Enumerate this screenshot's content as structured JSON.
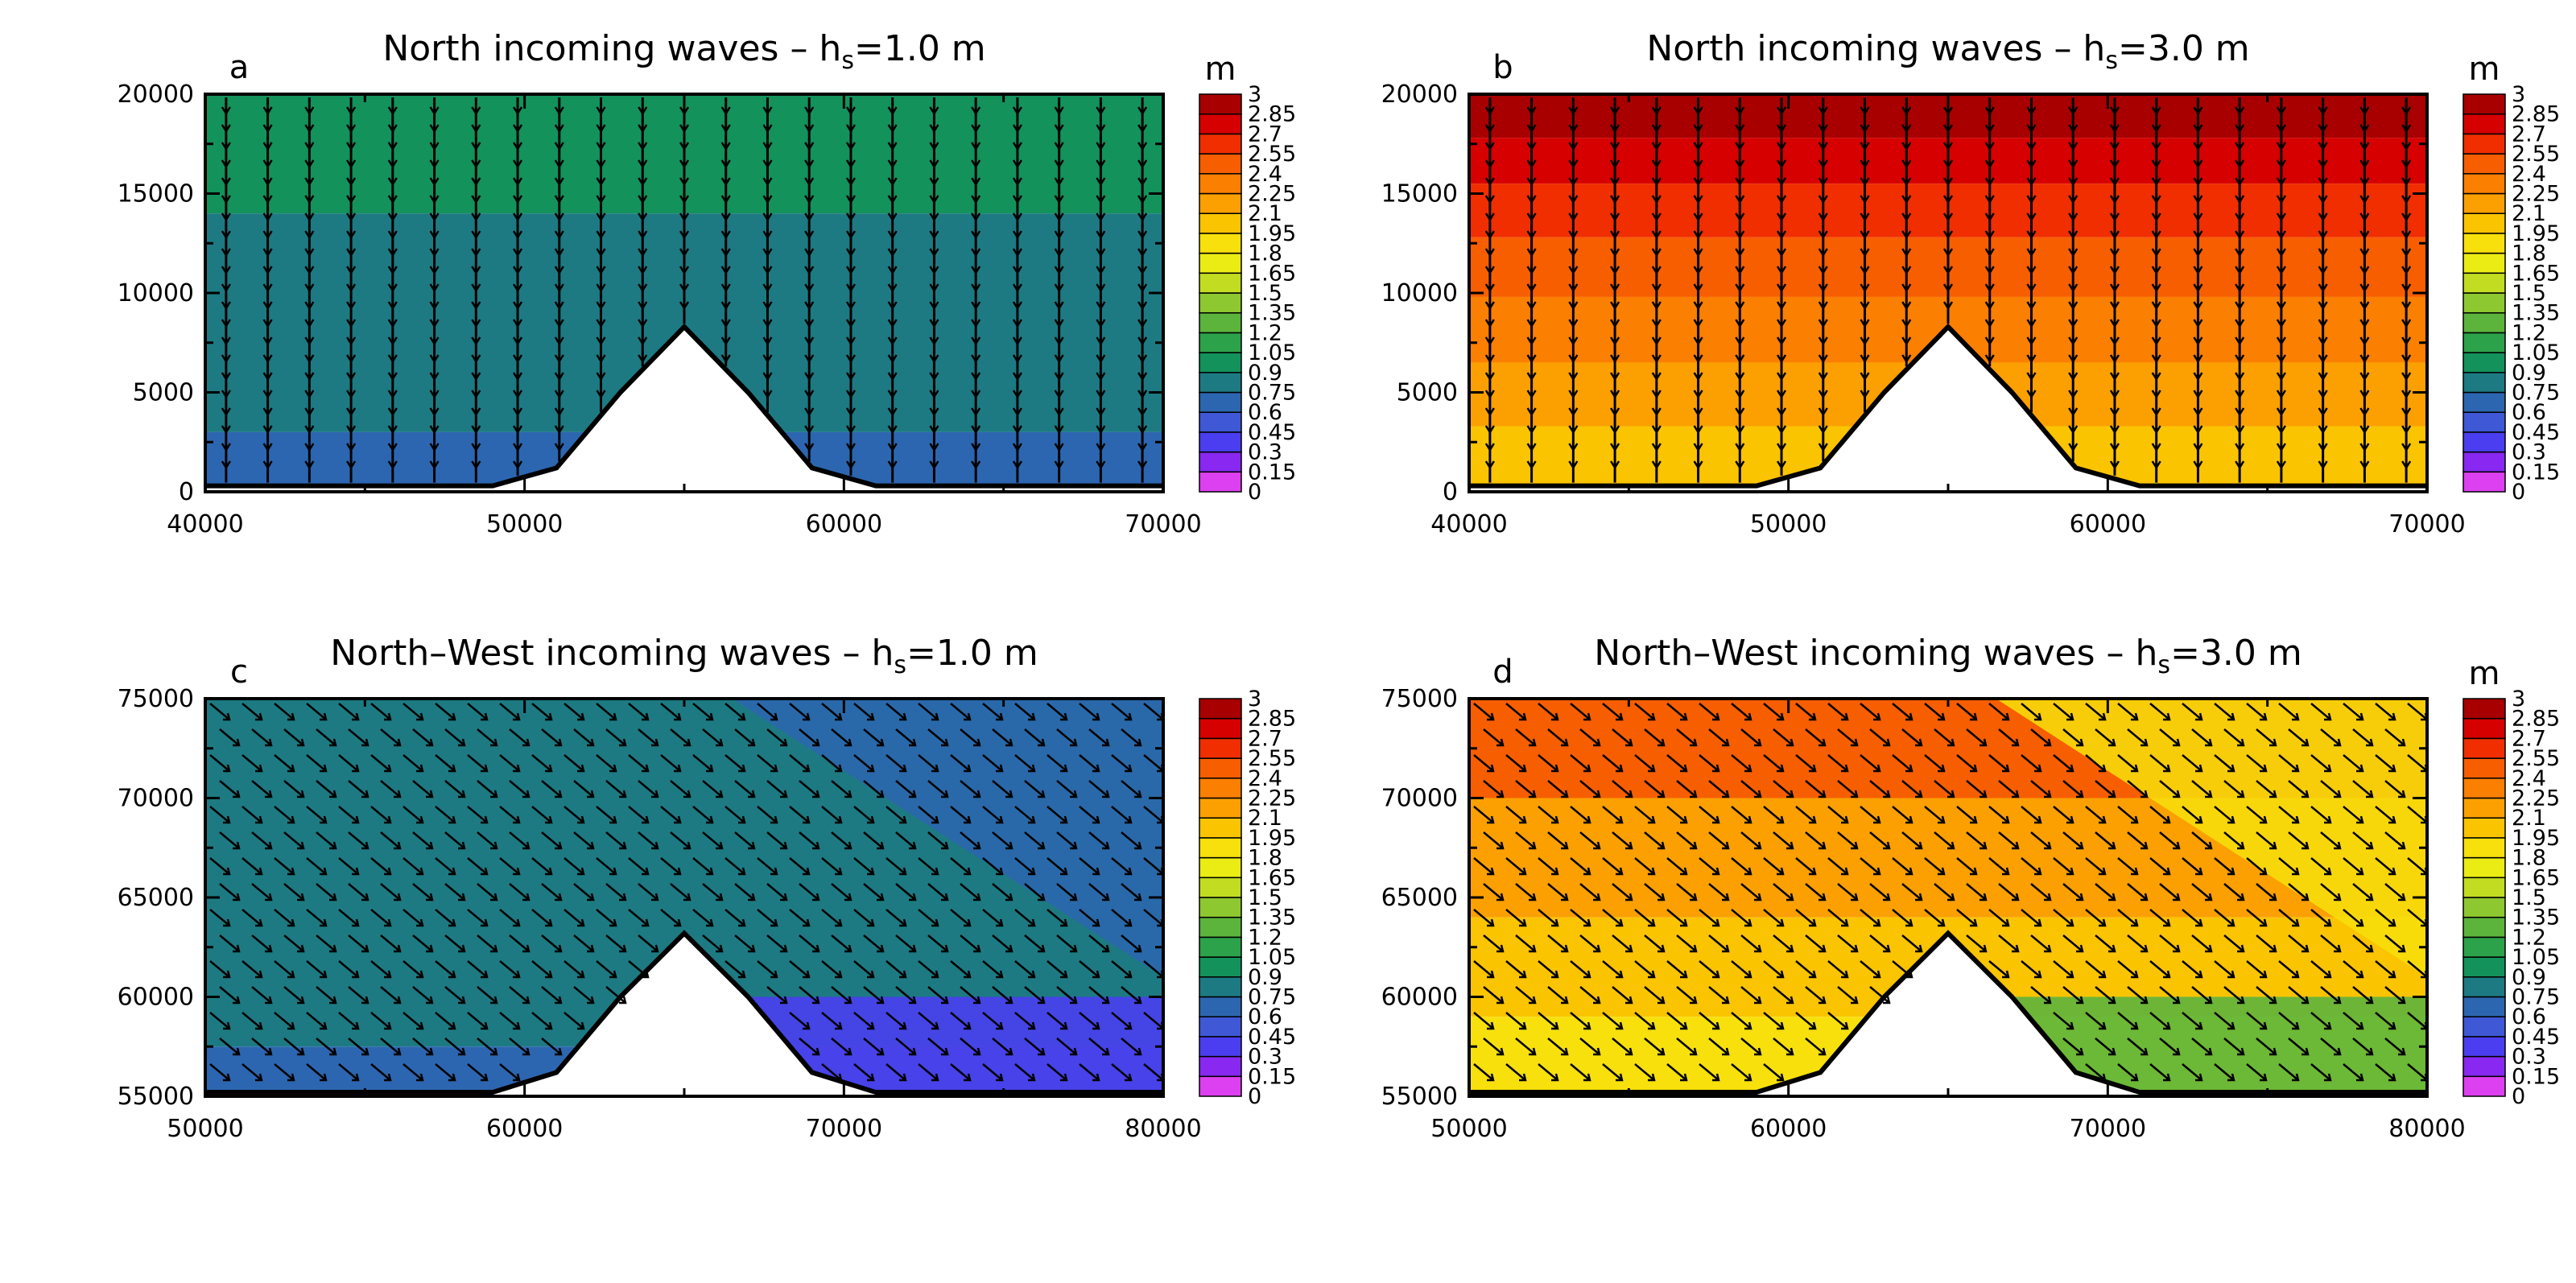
{
  "colorbar": {
    "unit": "m",
    "levels": [
      "0",
      "0.15",
      "0.3",
      "0.45",
      "0.6",
      "0.75",
      "0.9",
      "1.05",
      "1.2",
      "1.35",
      "1.5",
      "1.65",
      "1.8",
      "1.95",
      "2.1",
      "2.25",
      "2.4",
      "2.55",
      "2.7",
      "2.85",
      "3"
    ],
    "colors": [
      "#dd40f0",
      "#8828f0",
      "#4a3ef0",
      "#3e58d6",
      "#2c66b0",
      "#1d7a82",
      "#13925c",
      "#2ca24a",
      "#5cb43c",
      "#8ec830",
      "#c2dc22",
      "#eaec14",
      "#f7e00c",
      "#fbc400",
      "#fba000",
      "#fb7f00",
      "#f75e00",
      "#f02e00",
      "#d60000",
      "#a80000"
    ]
  },
  "chart_data": [
    {
      "type": "heatmap",
      "panel": "a",
      "title": "North incoming waves – h",
      "title_sub": "s",
      "title_tail": "=1.0 m",
      "xlim": [
        40000,
        70000
      ],
      "ylim": [
        0,
        20000
      ],
      "xticks": [
        "40000",
        "50000",
        "60000",
        "70000"
      ],
      "yticks": [
        "0",
        "5000",
        "10000",
        "15000",
        "20000"
      ],
      "xtick_values": [
        40000,
        50000,
        60000,
        70000
      ],
      "ytick_values": [
        0,
        5000,
        10000,
        15000,
        20000
      ],
      "island": {
        "x": [
          40000,
          49000,
          51000,
          53000,
          55000,
          57000,
          59000,
          61000,
          70000
        ],
        "y": [
          300,
          300,
          1200,
          5000,
          8300,
          5000,
          1200,
          300,
          300
        ]
      },
      "bands": [
        {
          "y_top": 20000,
          "y_bottom": 14000,
          "value": 0.95
        },
        {
          "y_top": 14000,
          "y_bottom": 3000,
          "value": 0.8
        },
        {
          "y_top": 3000,
          "y_bottom": 300,
          "value": 0.65
        }
      ],
      "wave_direction": "south",
      "colorbar_unit": "m"
    },
    {
      "type": "heatmap",
      "panel": "b",
      "title": "North incoming waves – h",
      "title_sub": "s",
      "title_tail": "=3.0 m",
      "xlim": [
        40000,
        70000
      ],
      "ylim": [
        0,
        20000
      ],
      "xticks": [
        "40000",
        "50000",
        "60000",
        "70000"
      ],
      "yticks": [
        "0",
        "5000",
        "10000",
        "15000",
        "20000"
      ],
      "xtick_values": [
        40000,
        50000,
        60000,
        70000
      ],
      "ytick_values": [
        0,
        5000,
        10000,
        15000,
        20000
      ],
      "island": {
        "x": [
          40000,
          49000,
          51000,
          53000,
          55000,
          57000,
          59000,
          61000,
          70000
        ],
        "y": [
          300,
          300,
          1200,
          5000,
          8300,
          5000,
          1200,
          300,
          300
        ]
      },
      "bands": [
        {
          "y_top": 20000,
          "y_bottom": 17800,
          "value": 2.9
        },
        {
          "y_top": 17800,
          "y_bottom": 15500,
          "value": 2.75
        },
        {
          "y_top": 15500,
          "y_bottom": 12800,
          "value": 2.6
        },
        {
          "y_top": 12800,
          "y_bottom": 9800,
          "value": 2.45
        },
        {
          "y_top": 9800,
          "y_bottom": 6500,
          "value": 2.3
        },
        {
          "y_top": 6500,
          "y_bottom": 3300,
          "value": 2.15
        },
        {
          "y_top": 3300,
          "y_bottom": 300,
          "value": 2.0
        }
      ],
      "wave_direction": "south",
      "colorbar_unit": "m"
    },
    {
      "type": "heatmap",
      "panel": "c",
      "title": "North–West incoming waves – h",
      "title_sub": "s",
      "title_tail": "=1.0 m",
      "xlim": [
        50000,
        80000
      ],
      "ylim": [
        55000,
        75000
      ],
      "xticks": [
        "50000",
        "60000",
        "70000",
        "80000"
      ],
      "yticks": [
        "55000",
        "60000",
        "65000",
        "70000",
        "75000"
      ],
      "xtick_values": [
        50000,
        60000,
        70000,
        80000
      ],
      "ytick_values": [
        55000,
        60000,
        65000,
        70000,
        75000
      ],
      "island": {
        "x": [
          50000,
          59000,
          61000,
          63000,
          65000,
          67000,
          69000,
          71000,
          80000
        ],
        "y": [
          55200,
          55200,
          56200,
          60000,
          63200,
          60000,
          56200,
          55200,
          55200
        ]
      },
      "bands": [
        {
          "y_top": 75000,
          "y_bottom": 70000,
          "value": 0.85
        },
        {
          "y_top": 70000,
          "y_bottom": 57500,
          "value": 0.8
        },
        {
          "y_top": 57500,
          "y_bottom": 55200,
          "value": 0.65
        }
      ],
      "wave_direction": "south-east",
      "colorbar_unit": ""
    },
    {
      "type": "heatmap",
      "panel": "d",
      "title": "North–West incoming waves – h",
      "title_sub": "s",
      "title_tail": "=3.0 m",
      "xlim": [
        50000,
        80000
      ],
      "ylim": [
        55000,
        75000
      ],
      "xticks": [
        "50000",
        "60000",
        "70000",
        "80000"
      ],
      "yticks": [
        "55000",
        "60000",
        "65000",
        "70000",
        "75000"
      ],
      "xtick_values": [
        50000,
        60000,
        70000,
        80000
      ],
      "ytick_values": [
        55000,
        60000,
        65000,
        70000,
        75000
      ],
      "island": {
        "x": [
          50000,
          59000,
          61000,
          63000,
          65000,
          67000,
          69000,
          71000,
          80000
        ],
        "y": [
          55200,
          55200,
          56200,
          60000,
          63200,
          60000,
          56200,
          55200,
          55200
        ]
      },
      "bands": [
        {
          "y_top": 75000,
          "y_bottom": 70000,
          "value": 2.5
        },
        {
          "y_top": 70000,
          "y_bottom": 64000,
          "value": 2.2
        },
        {
          "y_top": 64000,
          "y_bottom": 59000,
          "value": 2.0
        },
        {
          "y_top": 59000,
          "y_bottom": 55200,
          "value": 1.85
        }
      ],
      "wave_direction": "south-east",
      "colorbar_unit": "m"
    }
  ]
}
